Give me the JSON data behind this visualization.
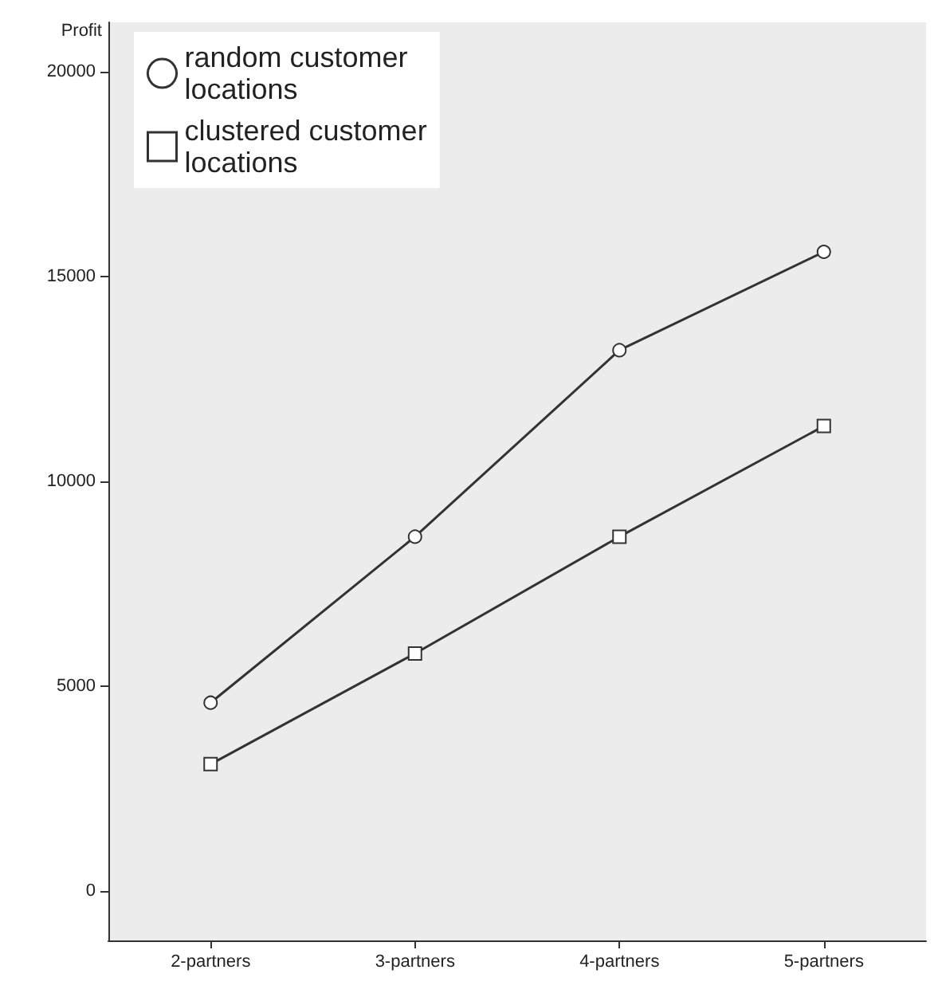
{
  "chart_data": {
    "type": "line",
    "ylabel": "Profit",
    "categories": [
      "2-partners",
      "3-partners",
      "4-partners",
      "5-partners"
    ],
    "series": [
      {
        "name": "random customer locations",
        "color": "#333333",
        "marker": "circle",
        "values": [
          4600,
          8650,
          13200,
          15600
        ]
      },
      {
        "name": "clustered customer locations",
        "color": "#333333",
        "marker": "square",
        "values": [
          3100,
          5800,
          8650,
          11350
        ]
      }
    ],
    "ylim": [
      -1200,
      21200
    ],
    "yticks": [
      0,
      5000,
      10000,
      15000,
      20000
    ],
    "grid": false,
    "legend": "top left",
    "line_style": "solid"
  }
}
